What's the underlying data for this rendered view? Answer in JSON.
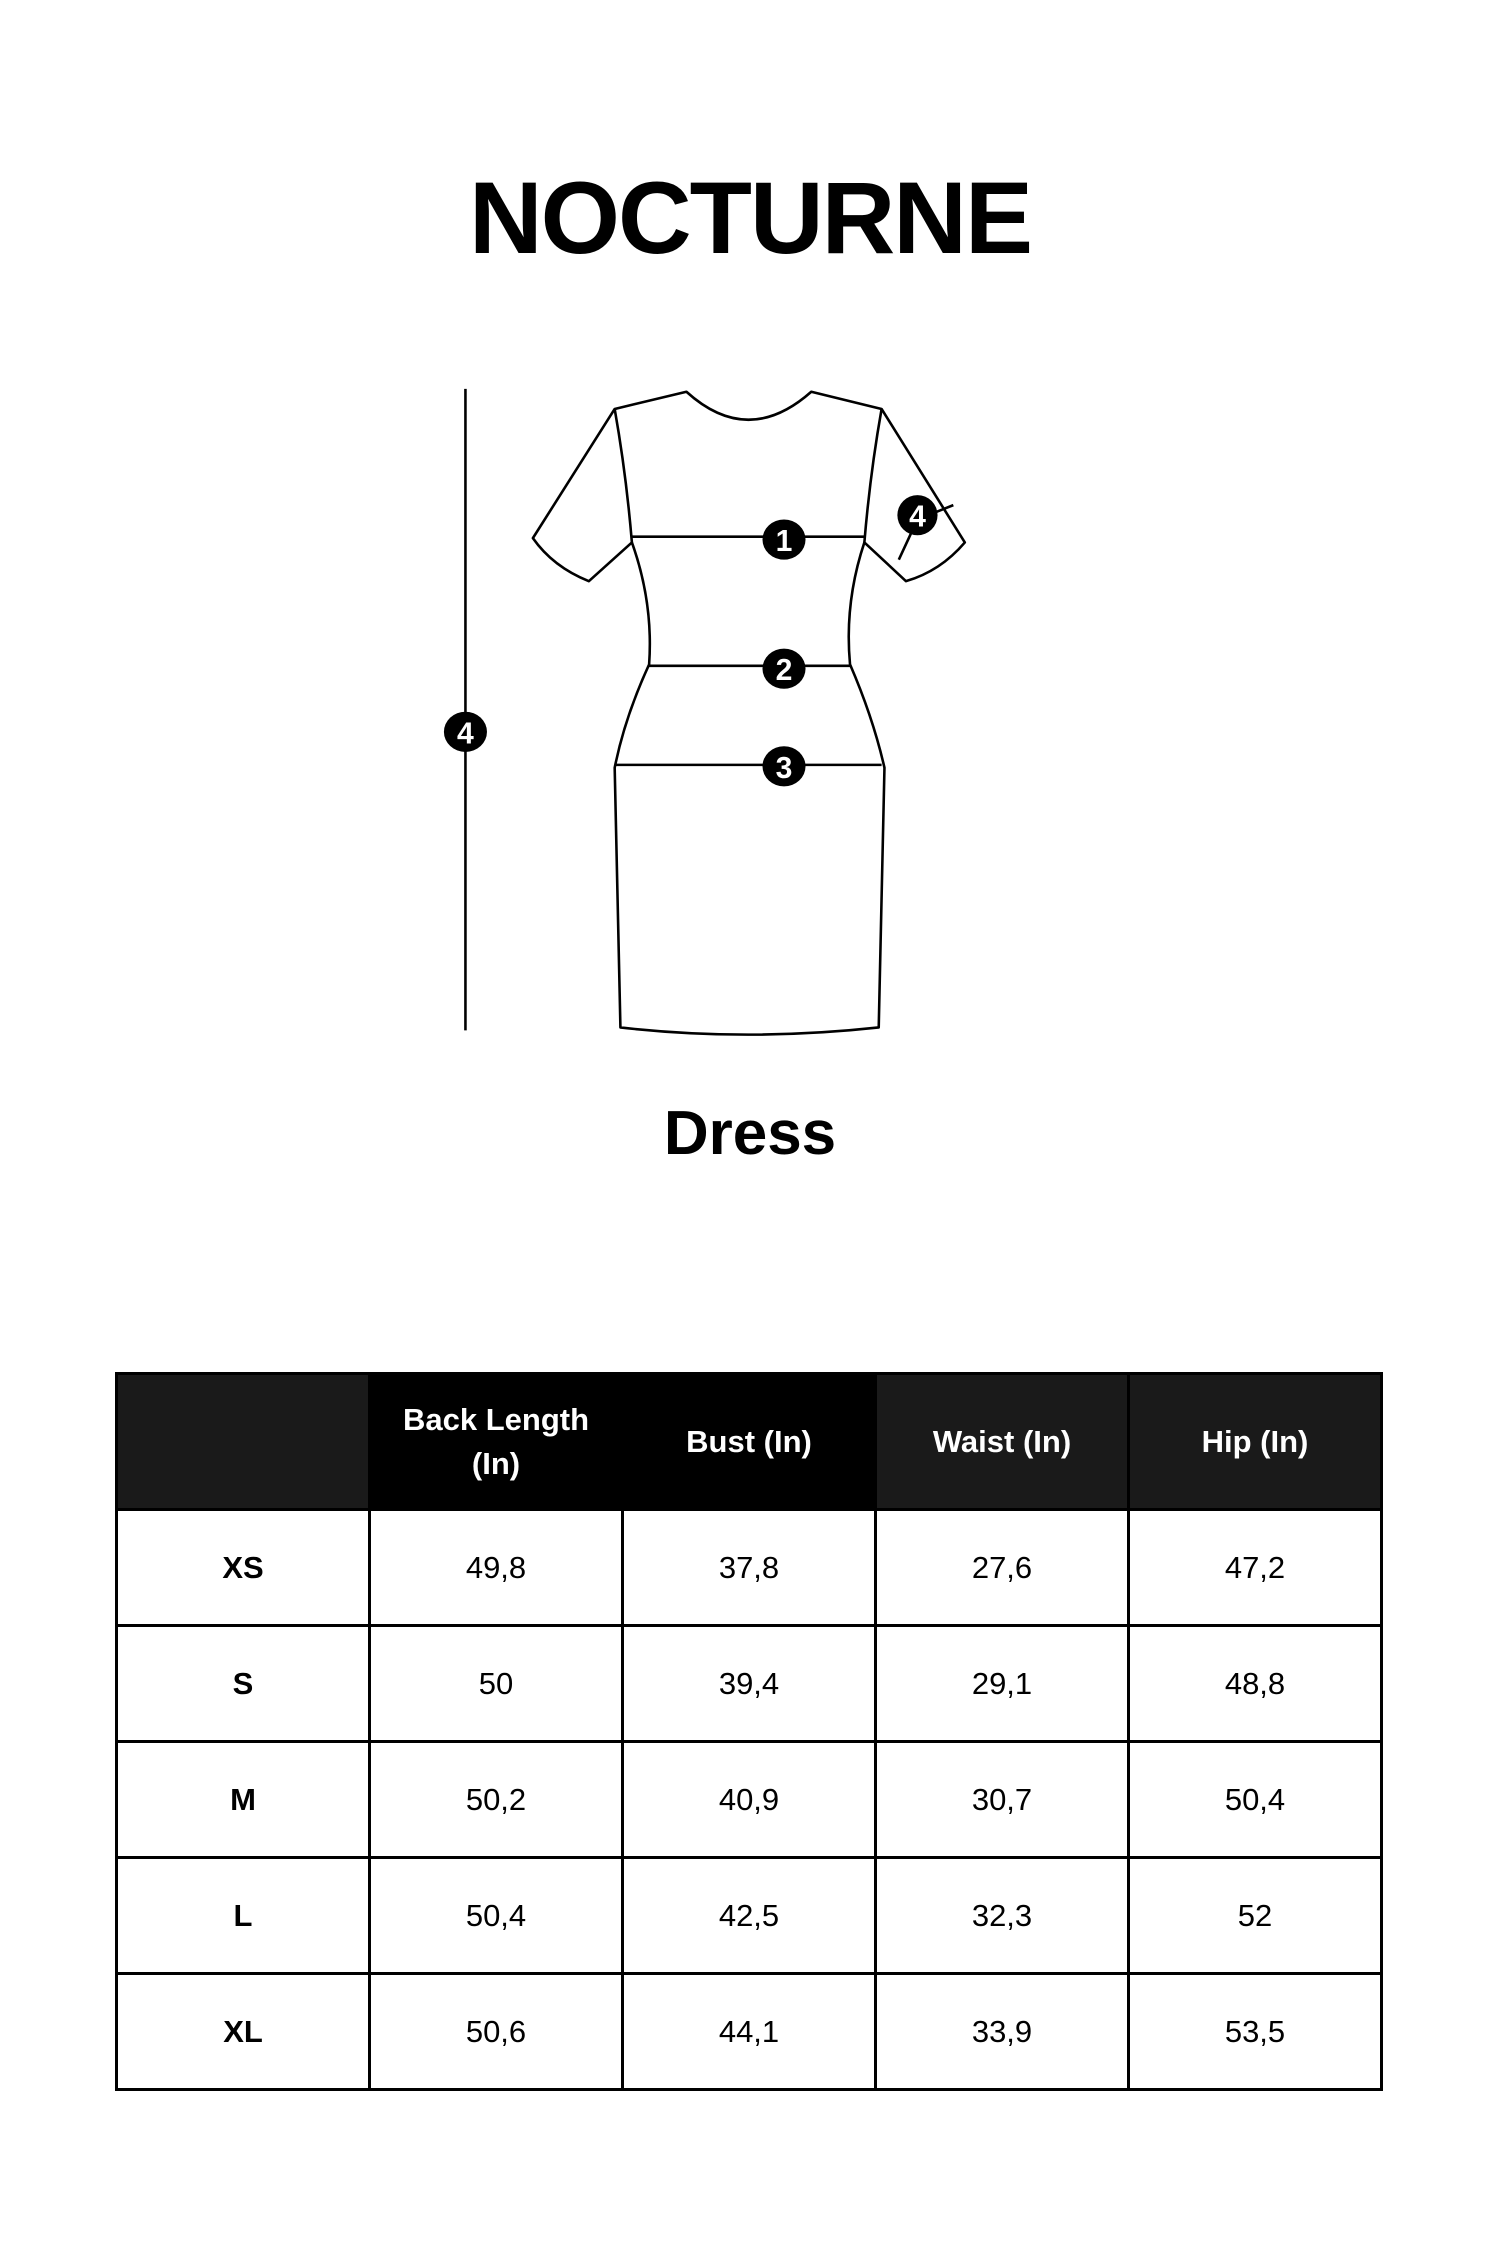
{
  "brand": "NOCTURNE",
  "garment": "Dress",
  "diagram_markers": [
    "1",
    "2",
    "3",
    "4",
    "4"
  ],
  "table": {
    "headers": [
      "",
      "Back Length (In)",
      "Bust (In)",
      "Waist (In)",
      "Hip (In)"
    ],
    "rows": [
      {
        "size": "XS",
        "values": [
          "49,8",
          "37,8",
          "27,6",
          "47,2"
        ]
      },
      {
        "size": "S",
        "values": [
          "50",
          "39,4",
          "29,1",
          "48,8"
        ]
      },
      {
        "size": "M",
        "values": [
          "50,2",
          "40,9",
          "30,7",
          "50,4"
        ]
      },
      {
        "size": "L",
        "values": [
          "50,4",
          "42,5",
          "32,3",
          "52"
        ]
      },
      {
        "size": "XL",
        "values": [
          "50,6",
          "44,1",
          "33,9",
          "53,5"
        ]
      }
    ]
  }
}
